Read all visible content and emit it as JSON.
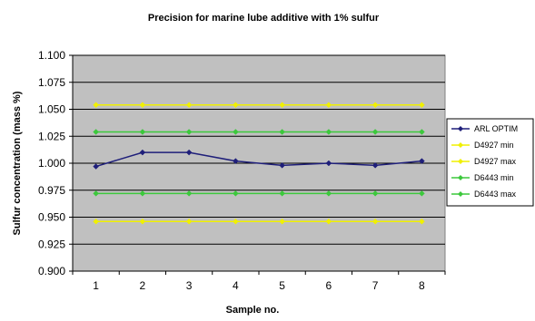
{
  "chart_data": {
    "type": "line",
    "title": "Precision for marine lube additive with 1%  sulfur",
    "xlabel": "Sample no.",
    "ylabel": "Sulfur concentration (mass %)",
    "categories": [
      "1",
      "2",
      "3",
      "4",
      "5",
      "6",
      "7",
      "8"
    ],
    "ylim": [
      0.9,
      1.1
    ],
    "yticks": [
      "0.900",
      "0.925",
      "0.950",
      "0.975",
      "1.000",
      "1.025",
      "1.050",
      "1.075",
      "1.100"
    ],
    "grid": "horizontal",
    "plot_background": "#c0c0c0",
    "legend_position": "right",
    "series": [
      {
        "name": "ARL OPTIM",
        "color": "#1f1f7a",
        "marker": "diamond",
        "values": [
          0.997,
          1.01,
          1.01,
          1.002,
          0.998,
          1.0,
          0.998,
          1.002
        ]
      },
      {
        "name": "D4927 min",
        "color": "#f0f000",
        "marker": "diamond",
        "values": [
          0.946,
          0.946,
          0.946,
          0.946,
          0.946,
          0.946,
          0.946,
          0.946
        ]
      },
      {
        "name": "D4927 max",
        "color": "#f0f000",
        "marker": "diamond",
        "values": [
          1.054,
          1.054,
          1.054,
          1.054,
          1.054,
          1.054,
          1.054,
          1.054
        ]
      },
      {
        "name": "D6443 min",
        "color": "#3cc83c",
        "marker": "diamond",
        "values": [
          0.972,
          0.972,
          0.972,
          0.972,
          0.972,
          0.972,
          0.972,
          0.972
        ]
      },
      {
        "name": "D6443 max",
        "color": "#3cc83c",
        "marker": "diamond",
        "values": [
          1.029,
          1.029,
          1.029,
          1.029,
          1.029,
          1.029,
          1.029,
          1.029
        ]
      }
    ]
  }
}
